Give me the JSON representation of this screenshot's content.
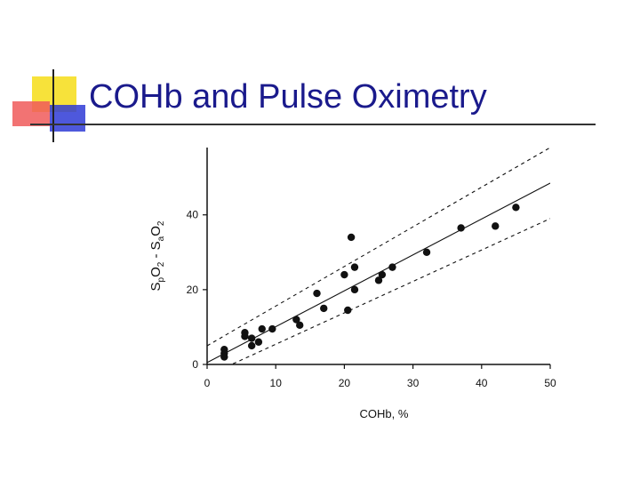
{
  "slide": {
    "title": "COHb and Pulse Oximetry",
    "colors": {
      "title": "#1a1a8c",
      "accent_yellow": "#f7e23a",
      "accent_red": "#f05a5a",
      "accent_blue": "#2f3bd6",
      "rule": "#333333",
      "ink": "#111111"
    }
  },
  "chart_data": {
    "type": "scatter",
    "title": "",
    "xlabel": "COHb, %",
    "ylabel": "SpO2 - SaO2",
    "xlim": [
      0,
      50
    ],
    "ylim": [
      0,
      58
    ],
    "x_ticks": [
      0,
      10,
      20,
      30,
      40,
      50
    ],
    "y_ticks": [
      0,
      20,
      40
    ],
    "grid": false,
    "legend": "none",
    "points": [
      {
        "x": 2.5,
        "y": 4
      },
      {
        "x": 2.5,
        "y": 3
      },
      {
        "x": 2.5,
        "y": 2
      },
      {
        "x": 5.5,
        "y": 8.5
      },
      {
        "x": 5.5,
        "y": 7.5
      },
      {
        "x": 6.5,
        "y": 5
      },
      {
        "x": 6.5,
        "y": 7
      },
      {
        "x": 7.5,
        "y": 6
      },
      {
        "x": 8,
        "y": 9.5
      },
      {
        "x": 9.5,
        "y": 9.5
      },
      {
        "x": 13,
        "y": 12
      },
      {
        "x": 13.5,
        "y": 10.5
      },
      {
        "x": 16,
        "y": 19
      },
      {
        "x": 17,
        "y": 15
      },
      {
        "x": 20,
        "y": 24
      },
      {
        "x": 20.5,
        "y": 14.5
      },
      {
        "x": 21,
        "y": 34
      },
      {
        "x": 21.5,
        "y": 26
      },
      {
        "x": 21.5,
        "y": 20
      },
      {
        "x": 25,
        "y": 22.5
      },
      {
        "x": 25.5,
        "y": 24
      },
      {
        "x": 27,
        "y": 26
      },
      {
        "x": 32,
        "y": 30
      },
      {
        "x": 37,
        "y": 36.5
      },
      {
        "x": 42,
        "y": 37
      },
      {
        "x": 45,
        "y": 42
      }
    ],
    "regression": {
      "x": [
        0,
        50
      ],
      "y": [
        0.5,
        48.5
      ]
    },
    "upper_band": {
      "x": [
        0,
        50
      ],
      "y": [
        5,
        58
      ]
    },
    "lower_band": {
      "x": [
        0,
        50
      ],
      "y": [
        -3,
        39
      ]
    }
  }
}
